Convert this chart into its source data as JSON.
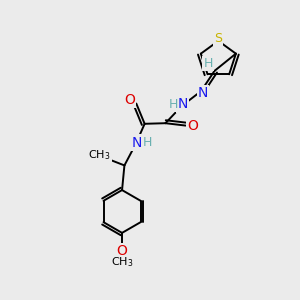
{
  "background_color": "#ebebeb",
  "atom_colors": {
    "C": "#000000",
    "H": "#6ab0b0",
    "N": "#1a1aee",
    "O": "#dd0000",
    "S": "#c8b400"
  },
  "figsize": [
    3.0,
    3.0
  ],
  "dpi": 100
}
